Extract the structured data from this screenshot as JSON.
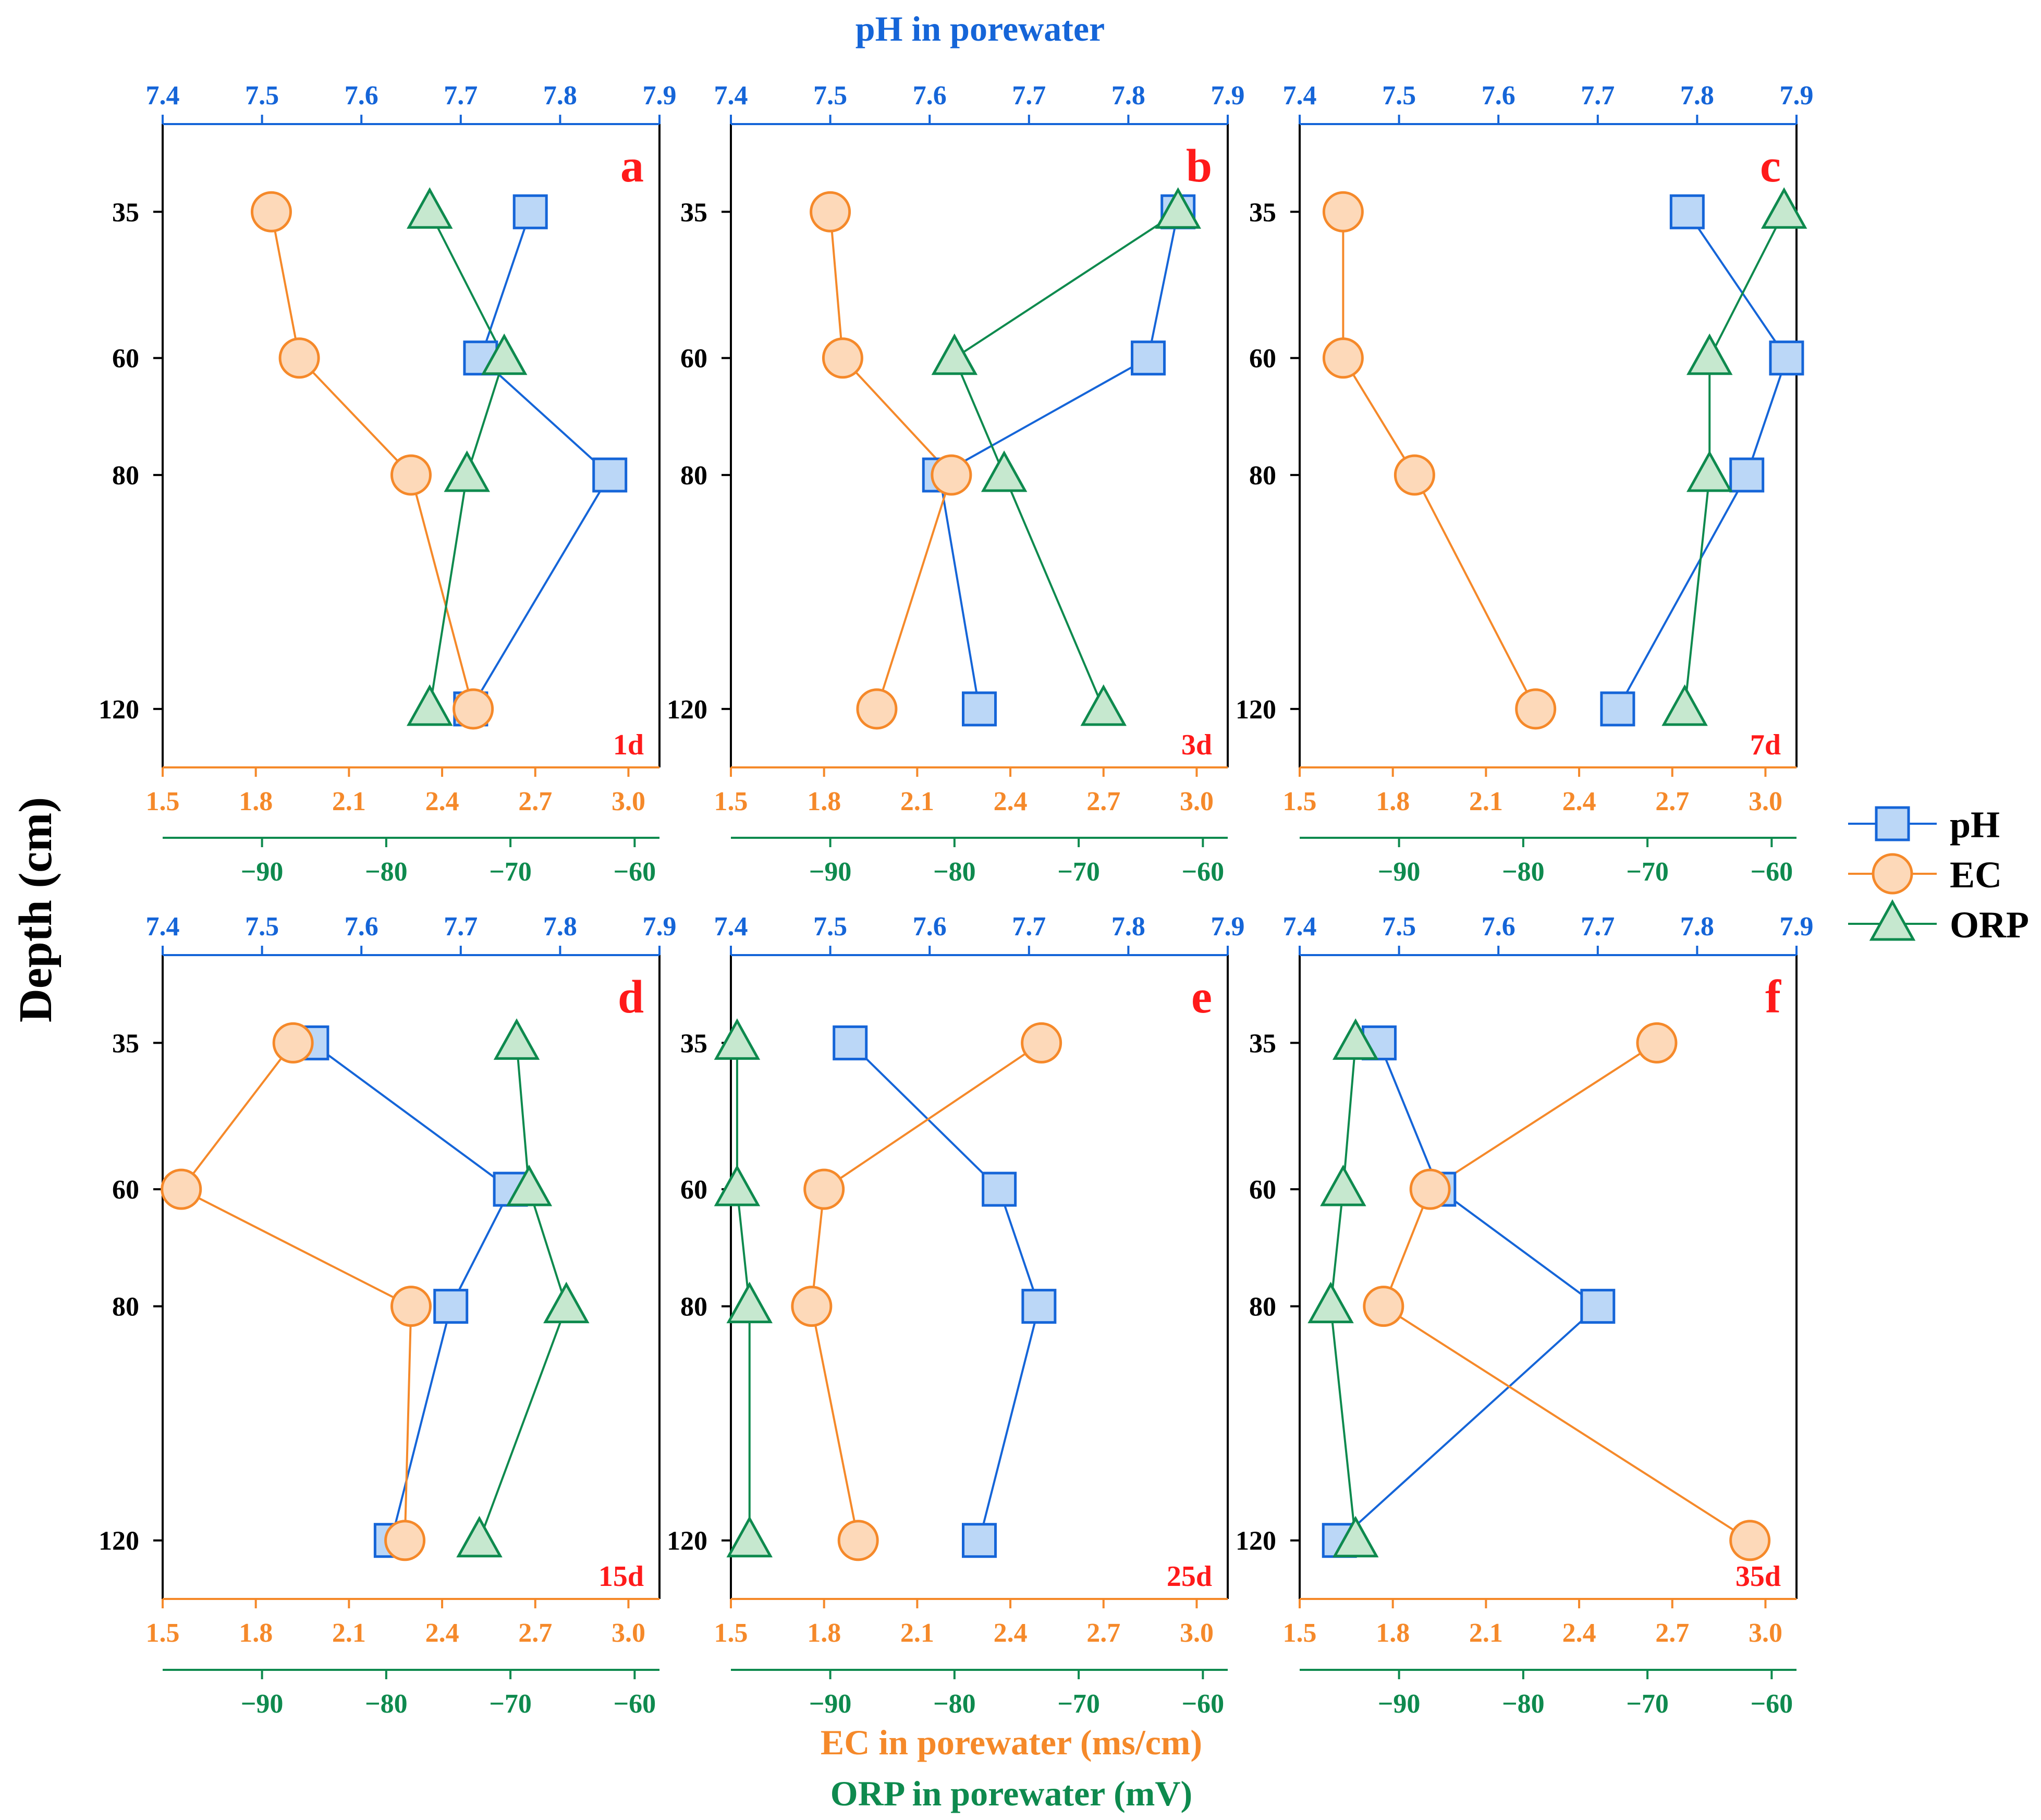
{
  "colors": {
    "ph": "#1565D8",
    "ph_fill": "#BBD7F7",
    "ec": "#F5892A",
    "ec_fill": "#FDD9B9",
    "orp": "#0E8A4E",
    "orp_fill": "#C6E8CF",
    "label_red": "#FF1A1A",
    "axis_black": "#000000"
  },
  "labels": {
    "top_title": "pH in porewater",
    "ylabel": "Depth (cm)",
    "bottom_ec": "EC in porewater (ms/cm)",
    "bottom_orp": "ORP in porewater (mV)"
  },
  "legend": [
    {
      "key": "ph",
      "label": "pH",
      "marker": "square"
    },
    {
      "key": "ec",
      "label": "EC",
      "marker": "circle"
    },
    {
      "key": "orp",
      "label": "ORP",
      "marker": "triangle"
    }
  ],
  "chart_data": {
    "type": "scatter",
    "title": "pH in porewater",
    "ylabel": "Depth (cm)",
    "xlabel_ec": "EC in porewater (ms/cm)",
    "xlabel_orp": "ORP in porewater (mV)",
    "depth_ticks": [
      35,
      60,
      80,
      120
    ],
    "depth_range": [
      20,
      130
    ],
    "ph_axis": {
      "range": [
        7.4,
        7.9
      ],
      "ticks": [
        "7.4",
        "7.5",
        "7.6",
        "7.7",
        "7.8",
        "7.9"
      ]
    },
    "ec_axis": {
      "range": [
        1.5,
        3.1
      ],
      "ticks": [
        "1.5",
        "1.8",
        "2.1",
        "2.4",
        "2.7",
        "3.0"
      ]
    },
    "orp_axis": {
      "range": [
        -98,
        -58
      ],
      "ticks": [
        "−90",
        "−80",
        "−70",
        "−60"
      ]
    },
    "panels": [
      {
        "letter": "a",
        "day": "1d",
        "ph": [
          7.77,
          7.72,
          7.85,
          7.71
        ],
        "ec": [
          1.85,
          1.94,
          2.3,
          2.5
        ],
        "orp": [
          -76.5,
          -70.5,
          -73.5,
          -76.5
        ]
      },
      {
        "letter": "b",
        "day": "3d",
        "ph": [
          7.85,
          7.82,
          7.61,
          7.65
        ],
        "ec": [
          1.82,
          1.86,
          2.21,
          1.97
        ],
        "orp": [
          -62,
          -80,
          -76,
          -68
        ]
      },
      {
        "letter": "c",
        "day": "7d",
        "ph": [
          7.79,
          7.89,
          7.85,
          7.72
        ],
        "ec": [
          1.64,
          1.64,
          1.87,
          2.26
        ],
        "orp": [
          -59,
          -65,
          -65,
          -67
        ]
      },
      {
        "letter": "d",
        "day": "15d",
        "ph": [
          7.55,
          7.75,
          7.69,
          7.63
        ],
        "ec": [
          1.92,
          1.56,
          2.3,
          2.28
        ],
        "orp": [
          -69.5,
          -68.5,
          -65.5,
          -72.5
        ]
      },
      {
        "letter": "e",
        "day": "25d",
        "ph": [
          7.52,
          7.67,
          7.71,
          7.65
        ],
        "ec": [
          2.5,
          1.8,
          1.76,
          1.91
        ],
        "orp": [
          -97.5,
          -97.5,
          -96.5,
          -96.5
        ]
      },
      {
        "letter": "f",
        "day": "35d",
        "ph": [
          7.48,
          7.54,
          7.7,
          7.44
        ],
        "ec": [
          2.65,
          1.92,
          1.77,
          2.95
        ],
        "orp": [
          -93.5,
          -94.5,
          -95.5,
          -93.5
        ]
      }
    ]
  }
}
